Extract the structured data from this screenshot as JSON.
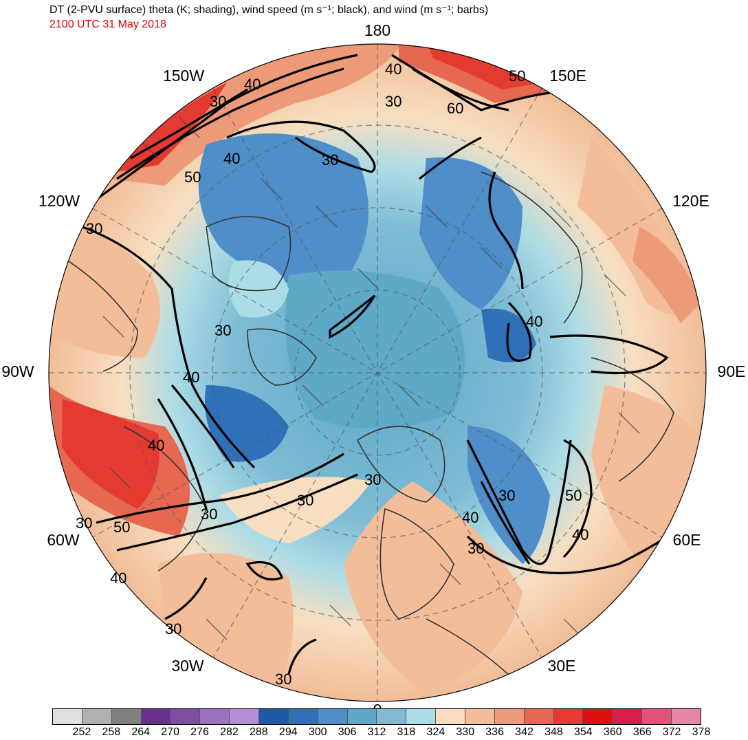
{
  "header": {
    "title": "DT (2-PVU surface) theta (K; shading), wind speed (m s⁻¹; black), and wind (m s⁻¹; barbs)",
    "valid_time": "2100 UTC 31 May 2018",
    "valid_time_color": "#e00000"
  },
  "map": {
    "projection": "polar-stereographic-north",
    "longitude_labels": {
      "lon_180": "180",
      "lon_150e": "150E",
      "lon_120e": "120E",
      "lon_90e": "90E",
      "lon_60e": "60E",
      "lon_30e": "30E",
      "lon_0": "0",
      "lon_30w": "30W",
      "lon_60w": "60W",
      "lon_90w": "90W",
      "lon_120w": "120W",
      "lon_150w": "150W"
    },
    "contour_labels": {
      "c1": "40",
      "c2": "30",
      "c3": "50",
      "c4": "60",
      "c5": "30",
      "c6": "40",
      "c7": "30",
      "c8": "40",
      "c9": "50",
      "c10": "30",
      "c11": "40",
      "c12": "30",
      "c13": "40",
      "c14": "40",
      "c15": "30",
      "c16": "30",
      "c17": "30",
      "c18": "30",
      "c19": "40",
      "c20": "30",
      "c21": "40",
      "c22": "50",
      "c23": "30",
      "c24": "50",
      "c25": "40",
      "c26": "30",
      "c27": "30",
      "c28": "30"
    }
  },
  "colorbar": {
    "labels": [
      "252",
      "258",
      "264",
      "270",
      "276",
      "282",
      "288",
      "294",
      "300",
      "306",
      "312",
      "318",
      "324",
      "330",
      "336",
      "342",
      "348",
      "354",
      "360",
      "366",
      "372",
      "378"
    ],
    "colors": [
      "#e0e0e0",
      "#b0b0b0",
      "#808080",
      "#6a2f8f",
      "#7e4ea3",
      "#9a72c0",
      "#b58fd6",
      "#1c5aa6",
      "#2f70b8",
      "#4f8ec8",
      "#5ea8c8",
      "#7fbcd4",
      "#acdce6",
      "#f7dec0",
      "#f2bd98",
      "#ec9a78",
      "#e76850",
      "#e33a32",
      "#e01010",
      "#d81e4a",
      "#e0547a",
      "#e886a6"
    ]
  }
}
